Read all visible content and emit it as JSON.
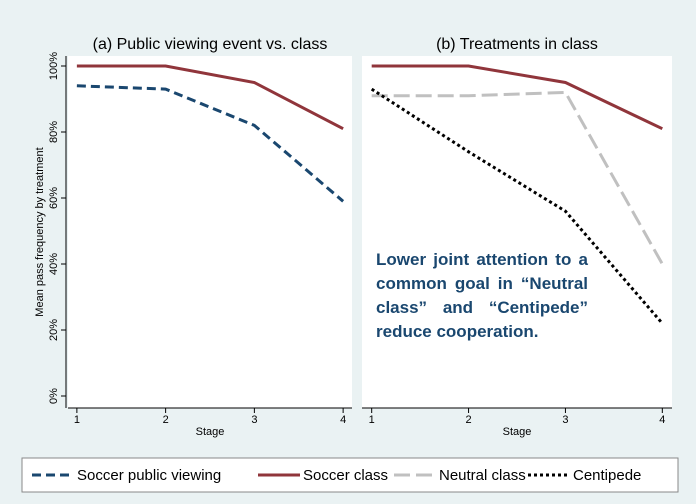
{
  "chart_data": [
    {
      "type": "line",
      "title": "(a) Public viewing event vs. class",
      "x": [
        1,
        2,
        3,
        4
      ],
      "xlim": [
        0.9,
        4.1
      ],
      "xticks": [
        1,
        2,
        3,
        4
      ],
      "xlabel": "Stage",
      "ylabel": "Mean pass frequency by treatment",
      "ylim": [
        0,
        100
      ],
      "yticks": [
        {
          "value": 0,
          "label": "0%"
        },
        {
          "value": 20,
          "label": "20%"
        },
        {
          "value": 40,
          "label": "40%"
        },
        {
          "value": 60,
          "label": "60%"
        },
        {
          "value": 80,
          "label": "80%"
        },
        {
          "value": 100,
          "label": "100%"
        }
      ],
      "series": [
        {
          "name": "Soccer public viewing",
          "color": "#1a476f",
          "dash": "dash",
          "values": [
            94,
            93,
            82,
            59
          ]
        },
        {
          "name": "Soccer class",
          "color": "#90353b",
          "dash": "solid",
          "values": [
            100,
            100,
            95,
            81
          ]
        }
      ]
    },
    {
      "type": "line",
      "title": "(b) Treatments in class",
      "x": [
        1,
        2,
        3,
        4
      ],
      "xlim": [
        0.9,
        4.1
      ],
      "xticks": [
        1,
        2,
        3,
        4
      ],
      "xlabel": "Stage",
      "ylim": [
        0,
        100
      ],
      "annotation": "Lower joint attention to a common goal in “Neutral class” and “Centipede” reduce cooperation.",
      "series": [
        {
          "name": "Soccer class",
          "color": "#90353b",
          "dash": "solid",
          "values": [
            100,
            100,
            95,
            81
          ]
        },
        {
          "name": "Neutral class",
          "color": "#c0c0c0",
          "dash": "longdash",
          "values": [
            91,
            91,
            92,
            40
          ]
        },
        {
          "name": "Centipede",
          "color": "#000000",
          "dash": "dot",
          "values": [
            93,
            74,
            56,
            22
          ]
        }
      ]
    }
  ]
}
